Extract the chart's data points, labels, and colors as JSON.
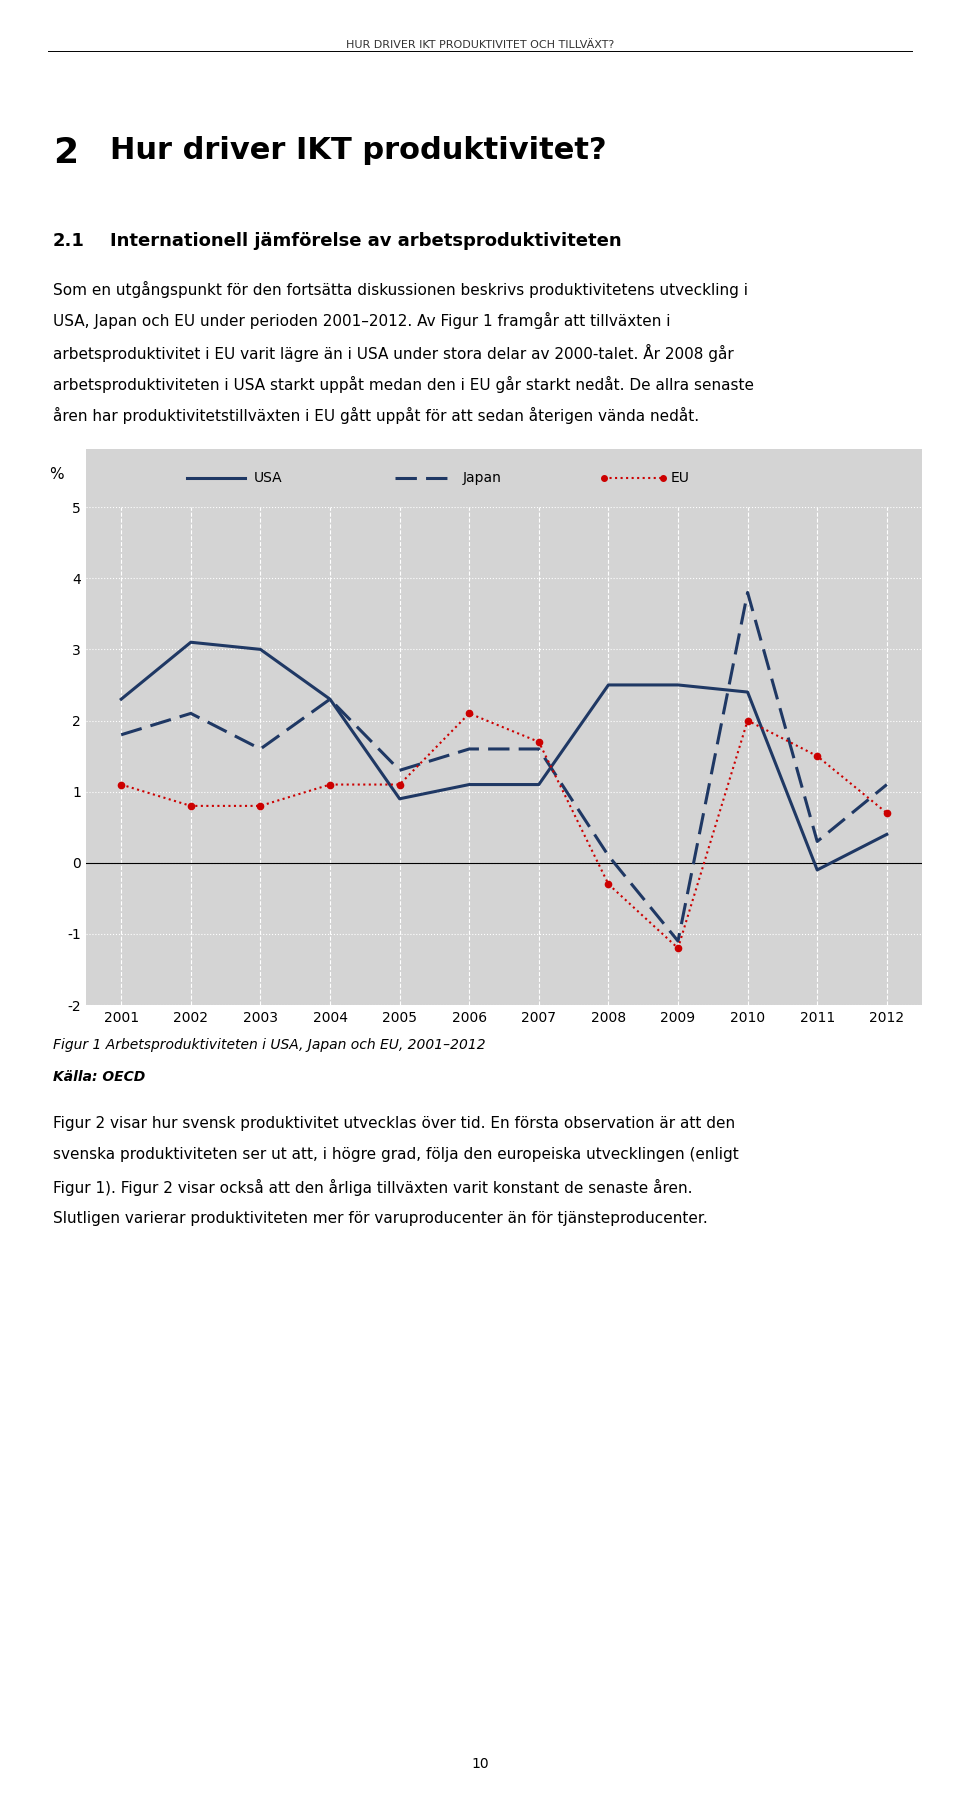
{
  "years": [
    2001,
    2002,
    2003,
    2004,
    2005,
    2006,
    2007,
    2008,
    2009,
    2010,
    2011,
    2012
  ],
  "USA": [
    2.3,
    3.1,
    3.0,
    2.3,
    0.9,
    1.1,
    1.1,
    2.5,
    2.5,
    2.4,
    -0.1,
    0.4
  ],
  "Japan": [
    1.8,
    2.1,
    1.6,
    2.3,
    1.3,
    1.6,
    1.6,
    0.1,
    -1.1,
    3.8,
    0.3,
    1.1
  ],
  "EU": [
    1.1,
    0.8,
    0.8,
    1.1,
    1.1,
    2.1,
    1.7,
    -0.3,
    -1.2,
    2.0,
    1.5,
    0.7
  ],
  "usa_color": "#1f3864",
  "japan_color": "#1f3864",
  "eu_color": "#cc0000",
  "ylim": [
    -2,
    5
  ],
  "yticks": [
    -2,
    -1,
    0,
    1,
    2,
    3,
    4,
    5
  ],
  "ylabel": "%",
  "bg_color": "#d4d4d4",
  "grid_color": "#ffffff",
  "figure_caption": "Figur 1 Arbetsproduktiviteten i USA, Japan och EU, 2001–2012",
  "source_label": "Källa: OECD",
  "header_text": "HUR DRIVER IKT PRODUKTIVITET OCH TILLVÄXT?",
  "section_number": "2",
  "section_title": "Hur driver IKT produktivitet?",
  "subsection_number": "2.1",
  "subsection_title": "Internationell jämförelse av arbetsproduktiviteten",
  "body_text1_lines": [
    "Som en utgångspunkt för den fortsätta diskussionen beskrivs produktivitetens utveckling i",
    "USA, Japan och EU under perioden 2001–2012. Av Figur 1 framgår att tillväxten i",
    "arbetsproduktivitet i EU varit lägre än i USA under stora delar av 2000-talet. År 2008 går",
    "arbetsproduktiviteten i USA starkt uppåt medan den i EU går starkt nedåt. De allra senaste",
    "åren har produktivitetstillväxten i EU gått uppåt för att sedan återigen vända nedåt."
  ],
  "body_text2_lines": [
    "Figur 2 visar hur svensk produktivitet utvecklas över tid. En första observation är att den",
    "svenska produktiviteten ser ut att, i högre grad, följa den europeiska utvecklingen (enligt",
    "Figur 1). Figur 2 visar också att den årliga tillväxten varit konstant de senaste åren.",
    "Slutligen varierar produktiviteten mer för varuproducenter än för tjänsteproducenter."
  ],
  "page_number": "10"
}
